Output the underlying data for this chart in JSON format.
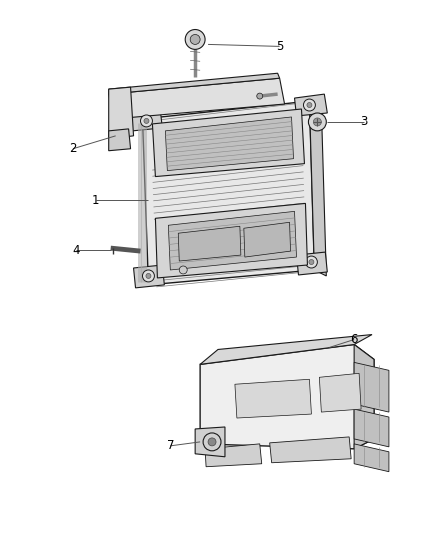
{
  "background_color": "#ffffff",
  "fig_width": 4.38,
  "fig_height": 5.33,
  "dpi": 100,
  "label_fontsize": 8.5,
  "line_color": "#1a1a1a",
  "gray_light": "#d8d8d8",
  "gray_med": "#b0b0b0",
  "gray_dark": "#888888",
  "white": "#ffffff"
}
